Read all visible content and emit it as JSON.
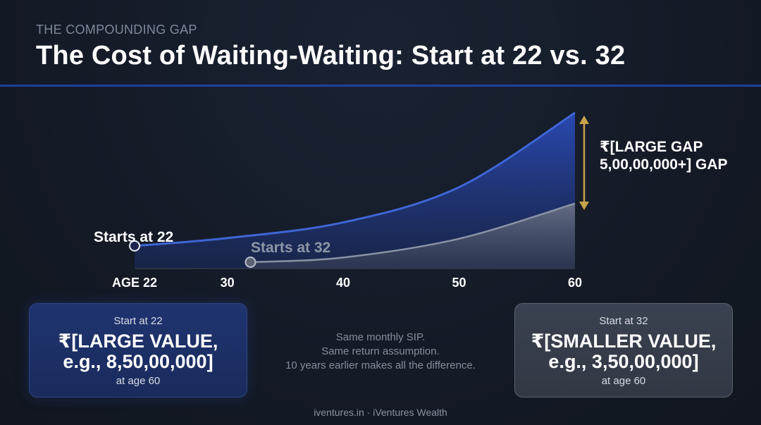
{
  "header": {
    "eyebrow": "THE COMPOUNDING GAP",
    "title": "The Cost of Waiting-Waiting: Start at 22 vs. 32"
  },
  "chart_data": {
    "type": "area",
    "x_ticks": [
      "AGE 22",
      "30",
      "40",
      "50",
      "60"
    ],
    "xlim": [
      22,
      60
    ],
    "series": [
      {
        "name": "Starts at 22",
        "start_age": 22,
        "x": [
          22,
          30,
          40,
          50,
          60
        ],
        "y": [
          1.0,
          2.0,
          4.0,
          8.5,
          18.0
        ],
        "color": "#3f66d6"
      },
      {
        "name": "Starts at 32",
        "start_age": 32,
        "x": [
          32,
          40,
          50,
          60
        ],
        "y": [
          0.0,
          0.6,
          3.0,
          7.5
        ],
        "color": "#8a93a6"
      }
    ],
    "gap_label": "₹[LARGE GAP 5,00,00,000+] GAP",
    "gap_color": "#c8a24a",
    "grid": false
  },
  "cards": {
    "left": {
      "head": "Start at 22",
      "value": "₹[LARGE VALUE, e.g., 8,50,00,000]",
      "foot": "at age 60"
    },
    "right": {
      "head": "Start at 32",
      "value": "₹[SMALLER VALUE, e.g., 3,50,00,000]",
      "foot": "at age 60"
    }
  },
  "notes": {
    "line1": "Same monthly SIP.",
    "line2": "Same return assumption.",
    "line3": "10 years earlier makes all the difference."
  },
  "footer": "iventures.in · iVentures Wealth"
}
